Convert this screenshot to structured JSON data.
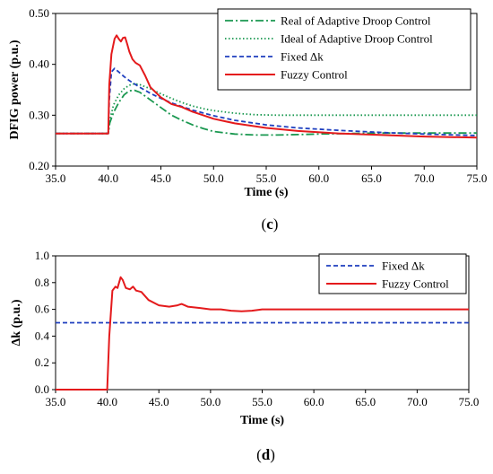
{
  "chart_data": [
    {
      "type": "line",
      "panel_label_open": "(",
      "panel_label_letter": "c",
      "panel_label_close": ")",
      "xlabel": "Time (s)",
      "ylabel": "DFIG  power (p.u.)",
      "xlim": [
        35,
        75
      ],
      "ylim": [
        0.2,
        0.5
      ],
      "xticks": [
        "35.0",
        "40.0",
        "45.0",
        "50.0",
        "55.0",
        "60.0",
        "65.0",
        "70.0",
        "75.0"
      ],
      "yticks": [
        "0.20",
        "0.30",
        "0.40",
        "0.50"
      ],
      "legend_position": "top-right",
      "series": [
        {
          "name": "Real of Adaptive Droop Control",
          "color": "#1a9850",
          "dash": "dashdot",
          "points": [
            [
              35,
              0.264
            ],
            [
              40,
              0.264
            ],
            [
              40.15,
              0.285
            ],
            [
              40.5,
              0.305
            ],
            [
              41,
              0.325
            ],
            [
              41.5,
              0.34
            ],
            [
              42,
              0.348
            ],
            [
              42.5,
              0.349
            ],
            [
              43,
              0.345
            ],
            [
              44,
              0.33
            ],
            [
              45,
              0.315
            ],
            [
              46,
              0.3
            ],
            [
              47,
              0.29
            ],
            [
              48,
              0.281
            ],
            [
              49,
              0.274
            ],
            [
              50,
              0.268
            ],
            [
              52,
              0.263
            ],
            [
              54,
              0.261
            ],
            [
              56,
              0.261
            ],
            [
              58,
              0.262
            ],
            [
              60,
              0.263
            ],
            [
              63,
              0.264
            ],
            [
              66,
              0.265
            ],
            [
              70,
              0.265
            ],
            [
              75,
              0.265
            ]
          ]
        },
        {
          "name": "Ideal of Adaptive Droop Control",
          "color": "#1a9850",
          "dash": "dotted",
          "points": [
            [
              35,
              0.264
            ],
            [
              40,
              0.264
            ],
            [
              40.15,
              0.29
            ],
            [
              40.5,
              0.32
            ],
            [
              41,
              0.34
            ],
            [
              41.5,
              0.352
            ],
            [
              42,
              0.359
            ],
            [
              42.5,
              0.362
            ],
            [
              43,
              0.36
            ],
            [
              44,
              0.352
            ],
            [
              45,
              0.342
            ],
            [
              46,
              0.333
            ],
            [
              47,
              0.325
            ],
            [
              48,
              0.318
            ],
            [
              49,
              0.313
            ],
            [
              50,
              0.309
            ],
            [
              52,
              0.304
            ],
            [
              54,
              0.301
            ],
            [
              56,
              0.3
            ],
            [
              60,
              0.3
            ],
            [
              65,
              0.3
            ],
            [
              70,
              0.3
            ],
            [
              75,
              0.3
            ]
          ]
        },
        {
          "name": "Fixed Δk",
          "color": "#1f3fbf",
          "dash": "dashed",
          "points": [
            [
              35,
              0.264
            ],
            [
              40,
              0.264
            ],
            [
              40.1,
              0.33
            ],
            [
              40.3,
              0.385
            ],
            [
              40.6,
              0.392
            ],
            [
              41,
              0.385
            ],
            [
              41.5,
              0.376
            ],
            [
              42,
              0.368
            ],
            [
              43,
              0.355
            ],
            [
              44,
              0.343
            ],
            [
              45,
              0.333
            ],
            [
              46,
              0.324
            ],
            [
              47,
              0.317
            ],
            [
              48,
              0.31
            ],
            [
              50,
              0.299
            ],
            [
              52,
              0.29
            ],
            [
              55,
              0.281
            ],
            [
              58,
              0.275
            ],
            [
              62,
              0.27
            ],
            [
              66,
              0.266
            ],
            [
              70,
              0.263
            ],
            [
              75,
              0.26
            ]
          ]
        },
        {
          "name": "Fuzzy Control",
          "color": "#e41a1c",
          "dash": "solid",
          "points": [
            [
              35,
              0.264
            ],
            [
              40,
              0.264
            ],
            [
              40.1,
              0.36
            ],
            [
              40.3,
              0.42
            ],
            [
              40.6,
              0.45
            ],
            [
              40.8,
              0.457
            ],
            [
              41,
              0.45
            ],
            [
              41.2,
              0.445
            ],
            [
              41.4,
              0.452
            ],
            [
              41.6,
              0.453
            ],
            [
              41.8,
              0.44
            ],
            [
              42,
              0.425
            ],
            [
              42.3,
              0.41
            ],
            [
              42.6,
              0.403
            ],
            [
              43,
              0.398
            ],
            [
              43.5,
              0.378
            ],
            [
              44,
              0.355
            ],
            [
              45,
              0.335
            ],
            [
              46,
              0.322
            ],
            [
              47,
              0.316
            ],
            [
              48,
              0.307
            ],
            [
              50,
              0.293
            ],
            [
              52,
              0.284
            ],
            [
              55,
              0.275
            ],
            [
              58,
              0.269
            ],
            [
              62,
              0.264
            ],
            [
              66,
              0.261
            ],
            [
              70,
              0.258
            ],
            [
              75,
              0.256
            ]
          ]
        }
      ]
    },
    {
      "type": "line",
      "panel_label_open": "(",
      "panel_label_letter": "d",
      "panel_label_close": ")",
      "xlabel": "Time (s)",
      "ylabel": "Δk (p.u.)",
      "xlim": [
        35,
        75
      ],
      "ylim": [
        0,
        1
      ],
      "xticks": [
        "35.0",
        "40.0",
        "45.0",
        "50.0",
        "55.0",
        "60.0",
        "65.0",
        "70.0",
        "75.0"
      ],
      "yticks": [
        "0.0",
        "0.2",
        "0.4",
        "0.6",
        "0.8",
        "1.0"
      ],
      "legend_position": "top-right",
      "series": [
        {
          "name": "Fixed Δk",
          "color": "#1f3fbf",
          "dash": "dashed",
          "points": [
            [
              35,
              0.5
            ],
            [
              75,
              0.5
            ]
          ]
        },
        {
          "name": "Fuzzy Control",
          "color": "#e41a1c",
          "dash": "solid",
          "points": [
            [
              35,
              0
            ],
            [
              40,
              0
            ],
            [
              40.2,
              0.4
            ],
            [
              40.5,
              0.74
            ],
            [
              40.8,
              0.77
            ],
            [
              41,
              0.76
            ],
            [
              41.3,
              0.84
            ],
            [
              41.5,
              0.82
            ],
            [
              41.8,
              0.76
            ],
            [
              42.2,
              0.75
            ],
            [
              42.5,
              0.77
            ],
            [
              42.8,
              0.74
            ],
            [
              43.3,
              0.73
            ],
            [
              44,
              0.67
            ],
            [
              45,
              0.63
            ],
            [
              46,
              0.62
            ],
            [
              46.8,
              0.63
            ],
            [
              47.2,
              0.64
            ],
            [
              47.8,
              0.62
            ],
            [
              49,
              0.61
            ],
            [
              50,
              0.6
            ],
            [
              51,
              0.6
            ],
            [
              52,
              0.59
            ],
            [
              53,
              0.585
            ],
            [
              54,
              0.59
            ],
            [
              55,
              0.6
            ],
            [
              60,
              0.6
            ],
            [
              65,
              0.6
            ],
            [
              70,
              0.6
            ],
            [
              75,
              0.6
            ]
          ]
        }
      ]
    }
  ]
}
